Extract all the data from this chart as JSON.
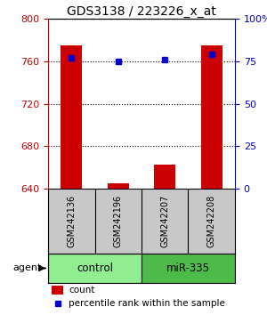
{
  "title": "GDS3138 / 223226_x_at",
  "samples": [
    "GSM242136",
    "GSM242196",
    "GSM242207",
    "GSM242208"
  ],
  "counts": [
    775,
    645,
    663,
    775
  ],
  "percentiles": [
    77,
    75,
    76,
    79
  ],
  "ylim_left": [
    640,
    800
  ],
  "ylim_right": [
    0,
    100
  ],
  "yticks_left": [
    640,
    680,
    720,
    760,
    800
  ],
  "yticks_right": [
    0,
    25,
    50,
    75,
    100
  ],
  "yticklabels_right": [
    "0",
    "25",
    "50",
    "75",
    "100%"
  ],
  "groups": [
    {
      "label": "control",
      "indices": [
        0,
        1
      ],
      "color": "#90EE90"
    },
    {
      "label": "miR-335",
      "indices": [
        2,
        3
      ],
      "color": "#4CBB47"
    }
  ],
  "bar_color": "#CC0000",
  "dot_color": "#0000CC",
  "bar_width": 0.45,
  "bar_baseline": 640,
  "background_color": "#FFFFFF",
  "sample_label_bg": "#C8C8C8",
  "left_axis_color": "#CC0000",
  "right_axis_color": "#0000CC",
  "agent_label": "agent",
  "legend_count": "count",
  "legend_percentile": "percentile rank within the sample"
}
